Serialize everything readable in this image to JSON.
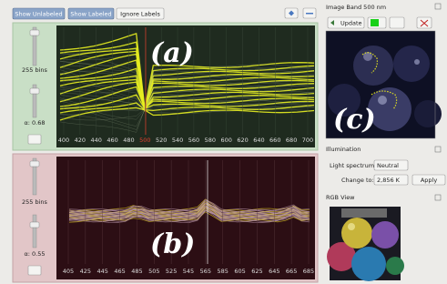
{
  "toolbar": {
    "buttons": [
      "Show Unlabeled",
      "Show Labeled",
      "Ignore Labels"
    ]
  },
  "panel_a": {
    "label": "(a)",
    "bins": "255 bins",
    "alpha": "α: 0.68",
    "ticks": [
      400,
      420,
      440,
      460,
      480,
      500,
      520,
      540,
      560,
      580,
      600,
      620,
      640,
      660,
      680,
      700
    ]
  },
  "panel_b": {
    "label": "(b)",
    "bins": "255 bins",
    "alpha": "α: 0.55",
    "ticks": [
      405,
      425,
      445,
      465,
      485,
      505,
      525,
      545,
      565,
      585,
      605,
      625,
      645,
      665,
      685
    ]
  },
  "band_view": {
    "title": "Image Band 500 nm",
    "update": "Update",
    "label": "(c)"
  },
  "illumination": {
    "title": "Illumination",
    "spectrum_label": "Light spectrum:",
    "spectrum_value": "Neutral",
    "change_label": "Change to:",
    "change_value": "2,856 K",
    "apply": "Apply"
  },
  "rgb_view": {
    "title": "RGB View"
  }
}
